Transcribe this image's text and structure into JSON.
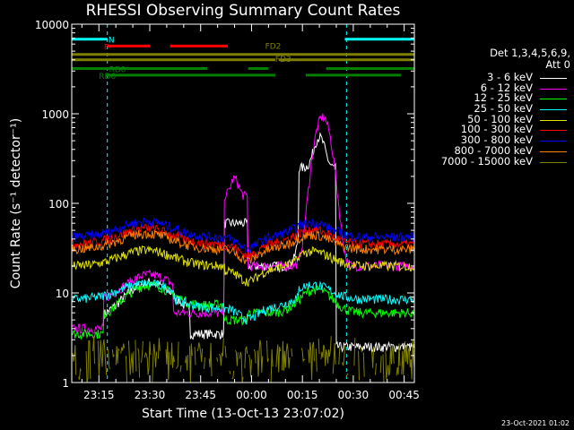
{
  "chart_data": {
    "type": "line",
    "title": "RHESSI Observing Summary Count Rates",
    "xlabel": "Start Time (13-Oct-13 23:07:02)",
    "ylabel": "Count Rate (s⁻¹ detector⁻¹)",
    "yscale": "log",
    "ylim": [
      1,
      10000
    ],
    "xlim_minutes_from_start": [
      0,
      101
    ],
    "x_ticks": [
      "23:15",
      "23:30",
      "23:45",
      "00:00",
      "00:15",
      "00:30",
      "00:45"
    ],
    "y_ticks": [
      "1",
      "10",
      "100",
      "1000",
      "10000"
    ],
    "legend_header": [
      "Det 1,3,4,5,6,9,",
      "Att 0"
    ],
    "series": [
      {
        "name": "3 - 6 keV",
        "color": "#ffffff"
      },
      {
        "name": "6 - 12 keV",
        "color": "#ff00ff"
      },
      {
        "name": "12 - 25 keV",
        "color": "#00ff00"
      },
      {
        "name": "25 - 50 keV",
        "color": "#00ffff"
      },
      {
        "name": "50 - 100 keV",
        "color": "#e0e000"
      },
      {
        "name": "100 - 300 keV",
        "color": "#ff0000"
      },
      {
        "name": "300 - 800 keV",
        "color": "#0000ff"
      },
      {
        "name": "800 - 7000 keV",
        "color": "#ff8000"
      },
      {
        "name": "7000 - 15000 keV",
        "color": "#808000"
      }
    ],
    "flag_labels": {
      "night": "N",
      "fast": "F",
      "decimation_fd2": "FD2",
      "decimation_fd3": "FD3",
      "rate_decimation_0": "RD0",
      "rate_decimation_6": "RD6"
    },
    "annotations": {
      "flare_peak_6_12_keV": 1000,
      "flare_peak_3_6_keV": 480
    }
  },
  "footer": {
    "date_stamp": "23-Oct-2021 01:02"
  }
}
